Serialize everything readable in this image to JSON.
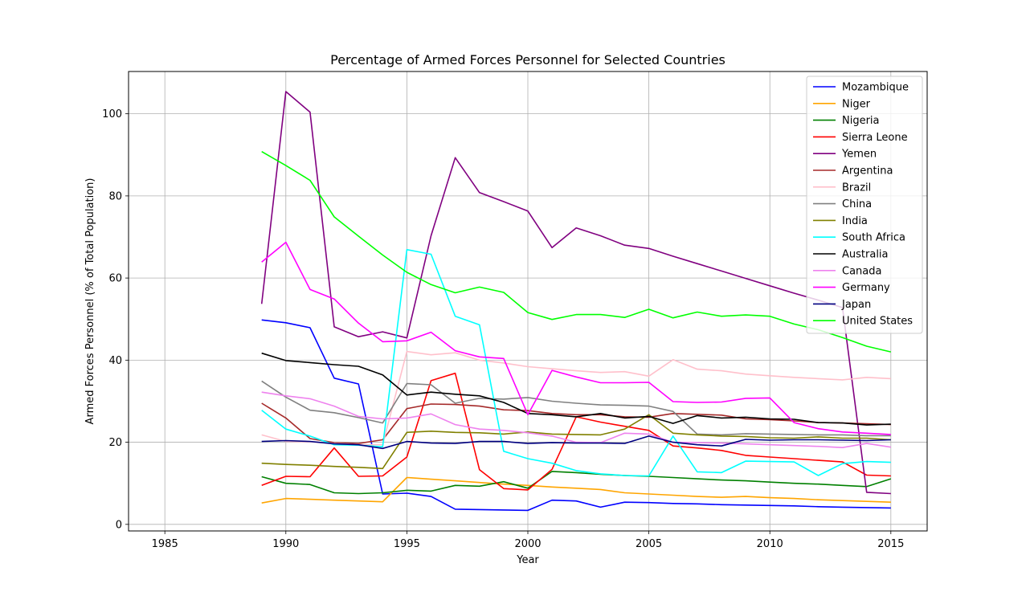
{
  "chart_data": {
    "type": "line",
    "title": "Percentage of Armed Forces Personnel for Selected Countries",
    "xlabel": "Year",
    "ylabel": "Armed Forces Personnel (% of Total Population)",
    "xlim": [
      1983.5,
      2016.5
    ],
    "ylim": [
      -1.6,
      110.3
    ],
    "xticks": [
      1985,
      1990,
      1995,
      2000,
      2005,
      2010,
      2015
    ],
    "yticks": [
      0,
      20,
      40,
      60,
      80,
      100
    ],
    "grid": true,
    "legend_position": "upper-right",
    "x": [
      1989,
      1990,
      1991,
      1992,
      1993,
      1994,
      1995,
      1996,
      1997,
      1998,
      1999,
      2000,
      2001,
      2002,
      2003,
      2004,
      2005,
      2006,
      2007,
      2008,
      2009,
      2010,
      2011,
      2012,
      2013,
      2014,
      2015
    ],
    "series": [
      {
        "name": "Mozambique",
        "color": "#0000ff",
        "values": [
          49.8,
          49.1,
          47.9,
          35.6,
          34.2,
          7.4,
          7.6,
          6.8,
          3.7,
          3.6,
          3.5,
          3.4,
          5.9,
          5.7,
          4.2,
          5.4,
          5.3,
          5.1,
          5.0,
          4.8,
          4.7,
          4.6,
          4.5,
          4.3,
          4.2,
          4.1,
          4.0
        ]
      },
      {
        "name": "Niger",
        "color": "#ffa500",
        "values": [
          5.2,
          6.3,
          6.1,
          5.9,
          5.7,
          5.5,
          11.4,
          11.0,
          10.6,
          10.2,
          9.8,
          9.5,
          9.1,
          8.8,
          8.5,
          7.7,
          7.4,
          7.1,
          6.8,
          6.6,
          6.8,
          6.5,
          6.3,
          6.0,
          5.8,
          5.6,
          5.4
        ]
      },
      {
        "name": "Nigeria",
        "color": "#008000",
        "values": [
          11.6,
          10.0,
          9.7,
          7.7,
          7.5,
          7.7,
          8.3,
          8.1,
          9.5,
          9.3,
          10.4,
          8.8,
          12.9,
          12.6,
          12.2,
          11.9,
          11.7,
          11.4,
          11.1,
          10.8,
          10.6,
          10.3,
          10.0,
          9.8,
          9.5,
          9.2,
          11.1
        ]
      },
      {
        "name": "Sierra Leone",
        "color": "#ff0000",
        "values": [
          9.5,
          11.7,
          11.6,
          18.6,
          11.7,
          11.8,
          16.4,
          35.0,
          36.8,
          13.3,
          8.7,
          8.4,
          13.4,
          26.2,
          24.9,
          23.9,
          22.9,
          19.1,
          18.6,
          18.0,
          16.8,
          16.4,
          16.0,
          15.6,
          15.2,
          12.0,
          11.8
        ]
      },
      {
        "name": "Yemen",
        "color": "#800080",
        "values": [
          53.7,
          105.4,
          100.4,
          48.1,
          45.7,
          46.9,
          45.4,
          70.3,
          89.3,
          80.8,
          78.6,
          76.3,
          67.4,
          72.2,
          70.3,
          68.0,
          67.2,
          65.3,
          63.5,
          61.7,
          59.9,
          58.1,
          56.3,
          54.6,
          52.8,
          7.8,
          7.5
        ]
      },
      {
        "name": "Argentina",
        "color": "#a52a2a",
        "values": [
          29.5,
          25.9,
          20.9,
          19.9,
          19.7,
          20.6,
          28.2,
          29.3,
          29.2,
          28.8,
          27.9,
          27.7,
          27.0,
          26.7,
          26.7,
          26.2,
          26.1,
          27.0,
          26.8,
          26.6,
          25.7,
          25.5,
          25.2,
          24.8,
          24.7,
          24.5,
          24.3
        ]
      },
      {
        "name": "Brazil",
        "color": "#ffc0cb",
        "values": [
          21.8,
          20.2,
          20.1,
          19.7,
          19.4,
          19.4,
          42.1,
          41.3,
          41.8,
          40.0,
          39.3,
          38.4,
          37.9,
          37.4,
          37.0,
          37.2,
          36.1,
          40.1,
          37.8,
          37.4,
          36.6,
          36.2,
          35.8,
          35.5,
          35.2,
          35.8,
          35.5
        ]
      },
      {
        "name": "China",
        "color": "#808080",
        "values": [
          34.9,
          31.0,
          27.8,
          27.2,
          26.0,
          24.7,
          34.3,
          34.0,
          29.5,
          30.7,
          30.5,
          30.9,
          30.0,
          29.5,
          29.1,
          29.0,
          28.8,
          27.5,
          22.0,
          21.8,
          22.1,
          22.0,
          21.9,
          21.8,
          21.8,
          21.6,
          21.6
        ]
      },
      {
        "name": "India",
        "color": "#808000",
        "values": [
          14.9,
          14.6,
          14.4,
          14.1,
          13.9,
          13.6,
          22.4,
          22.7,
          22.4,
          22.3,
          22.0,
          22.5,
          22.0,
          21.9,
          21.8,
          23.2,
          26.7,
          22.2,
          21.8,
          21.5,
          21.4,
          21.1,
          21.0,
          21.3,
          21.0,
          21.0,
          20.6
        ]
      },
      {
        "name": "South Africa",
        "color": "#00ffff",
        "values": [
          27.8,
          23.2,
          21.5,
          19.4,
          19.3,
          18.9,
          66.9,
          65.8,
          50.7,
          48.6,
          17.8,
          16.0,
          14.9,
          13.1,
          12.3,
          11.9,
          11.8,
          21.5,
          12.8,
          12.6,
          15.4,
          15.3,
          15.2,
          11.9,
          14.8,
          15.3,
          15.1
        ]
      },
      {
        "name": "Australia",
        "color": "#000000",
        "values": [
          41.7,
          39.9,
          39.4,
          38.9,
          38.5,
          36.4,
          31.5,
          32.2,
          31.7,
          31.3,
          29.7,
          27.0,
          26.7,
          26.2,
          27.0,
          25.9,
          26.3,
          24.6,
          26.5,
          25.9,
          26.1,
          25.7,
          25.6,
          24.8,
          24.7,
          24.2,
          24.4
        ]
      },
      {
        "name": "Canada",
        "color": "#ee82ee",
        "values": [
          32.2,
          31.3,
          30.6,
          28.8,
          26.3,
          25.7,
          25.9,
          26.9,
          24.3,
          23.2,
          22.9,
          22.3,
          21.5,
          20.0,
          19.9,
          22.2,
          22.0,
          20.0,
          19.9,
          19.8,
          19.6,
          19.4,
          19.2,
          19.0,
          18.7,
          19.7,
          18.8
        ]
      },
      {
        "name": "Germany",
        "color": "#ff00ff",
        "values": [
          63.9,
          68.7,
          57.2,
          54.9,
          49.0,
          44.5,
          44.7,
          46.8,
          42.3,
          40.8,
          40.4,
          26.7,
          37.5,
          35.9,
          34.5,
          34.5,
          34.6,
          29.9,
          29.7,
          29.8,
          30.7,
          30.8,
          24.8,
          23.3,
          22.5,
          22.2,
          21.9
        ]
      },
      {
        "name": "Japan",
        "color": "#000080",
        "values": [
          20.2,
          20.4,
          20.2,
          19.6,
          19.4,
          18.5,
          20.2,
          19.8,
          19.7,
          20.2,
          20.2,
          19.7,
          19.9,
          19.8,
          19.8,
          19.7,
          21.5,
          20.0,
          19.4,
          19.1,
          20.7,
          20.5,
          20.6,
          20.6,
          20.5,
          20.4,
          20.6
        ]
      },
      {
        "name": "United States",
        "color": "#00ff00",
        "values": [
          90.8,
          87.4,
          83.8,
          74.9,
          70.2,
          65.6,
          61.4,
          58.4,
          56.4,
          57.8,
          56.5,
          51.6,
          49.9,
          51.1,
          51.1,
          50.4,
          52.4,
          50.3,
          51.7,
          50.7,
          51.0,
          50.7,
          48.8,
          47.4,
          45.5,
          43.4,
          42.0
        ]
      }
    ]
  }
}
